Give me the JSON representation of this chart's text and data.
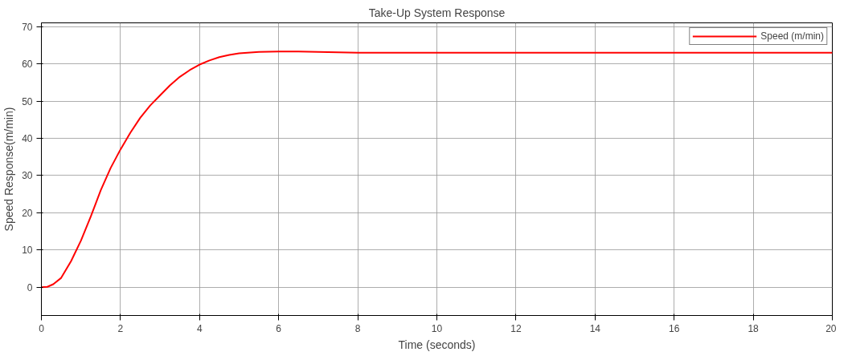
{
  "chart_data": {
    "type": "line",
    "title": "Take-Up System Response",
    "xlabel": "Time (seconds)",
    "ylabel": "Speed Response(m/min)",
    "x": [
      0,
      0.15,
      0.3,
      0.5,
      0.75,
      1,
      1.25,
      1.5,
      1.75,
      2,
      2.25,
      2.5,
      2.75,
      3,
      3.25,
      3.5,
      3.75,
      4,
      4.25,
      4.5,
      4.75,
      5,
      5.5,
      6,
      6.5,
      7,
      7.5,
      8,
      10,
      12,
      14,
      16,
      18,
      20
    ],
    "series": [
      {
        "name": "Speed (m/min)",
        "color": "#ff0000",
        "values": [
          0,
          0.1,
          0.8,
          2.5,
          7,
          12.5,
          19,
          26,
          32,
          37,
          41.5,
          45.5,
          48.8,
          51.5,
          54.2,
          56.5,
          58.3,
          59.8,
          60.9,
          61.8,
          62.4,
          62.8,
          63.2,
          63.3,
          63.3,
          63.2,
          63.1,
          63,
          63,
          63,
          63,
          63,
          63,
          63
        ]
      }
    ],
    "xlim": [
      0,
      20
    ],
    "ylim": [
      -7.6,
      71
    ],
    "xticks": [
      0,
      2,
      4,
      6,
      8,
      10,
      12,
      14,
      16,
      18,
      20
    ],
    "yticks": [
      0,
      10,
      20,
      30,
      40,
      50,
      60,
      70
    ],
    "grid": true,
    "legend": "top right",
    "line_style": "solid",
    "marker": "none"
  }
}
